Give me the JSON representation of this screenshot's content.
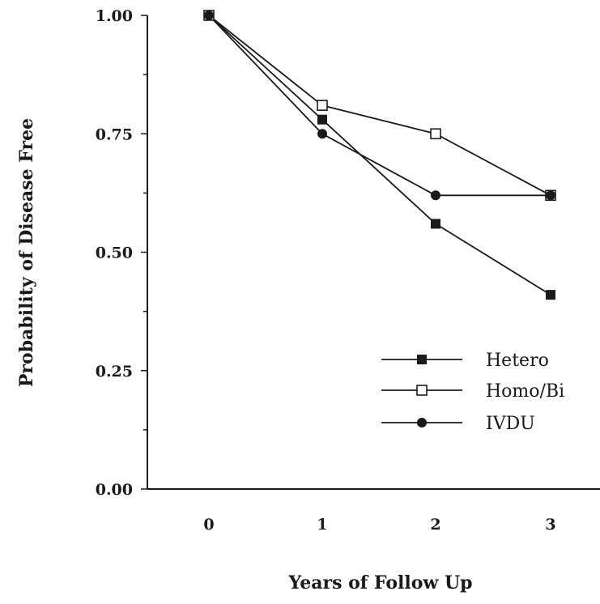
{
  "chart_data": {
    "type": "line",
    "xlabel": "Years of Follow Up",
    "ylabel": "Probability of Disease Free",
    "xlim": [
      -0.5,
      3.5
    ],
    "ylim": [
      0,
      1
    ],
    "x_ticks": [
      "0",
      "1",
      "2",
      "3"
    ],
    "y_ticks": [
      "0.00",
      "0.25",
      "0.50",
      "0.75",
      "1.00"
    ],
    "grid": false,
    "legend_position": "lower-right",
    "series": [
      {
        "name": "Hetero",
        "marker": "filled-square",
        "x": [
          0,
          1,
          2,
          3
        ],
        "values": [
          1.0,
          0.78,
          0.56,
          0.41
        ]
      },
      {
        "name": "Homo/Bi",
        "marker": "open-square",
        "x": [
          0,
          1,
          2,
          3
        ],
        "values": [
          1.0,
          0.81,
          0.75,
          0.62
        ]
      },
      {
        "name": "IVDU",
        "marker": "filled-circle",
        "x": [
          0,
          1,
          2,
          3
        ],
        "values": [
          1.0,
          0.75,
          0.62,
          0.62
        ]
      }
    ]
  }
}
